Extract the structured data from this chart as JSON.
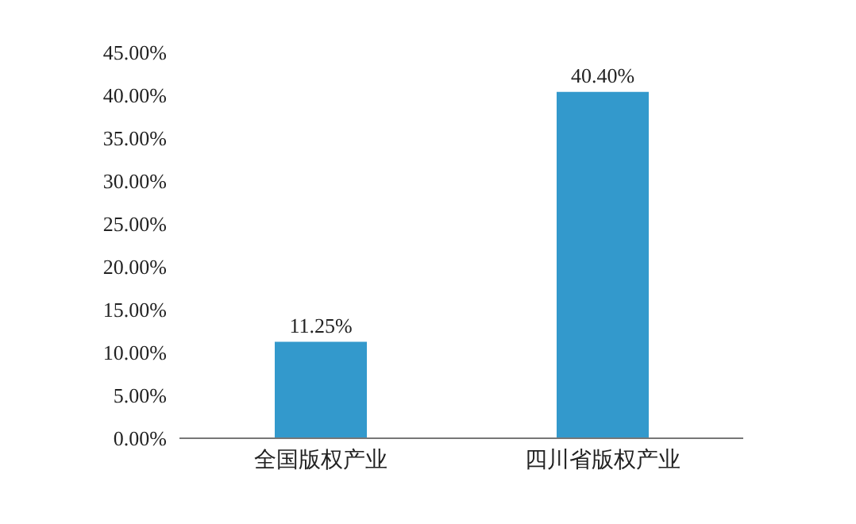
{
  "chart_data": {
    "type": "bar",
    "categories": [
      "全国版权产业",
      "四川省版权产业"
    ],
    "values": [
      11.25,
      40.4
    ],
    "color": "#3399cc",
    "value_labels": [
      "11.25%",
      "40.40%"
    ],
    "ylim": [
      0,
      45
    ],
    "yticks": [
      {
        "value": 0,
        "label": "0.00%"
      },
      {
        "value": 5,
        "label": "5.00%"
      },
      {
        "value": 10,
        "label": "10.00%"
      },
      {
        "value": 15,
        "label": "15.00%"
      },
      {
        "value": 20,
        "label": "20.00%"
      },
      {
        "value": 25,
        "label": "25.00%"
      },
      {
        "value": 30,
        "label": "30.00%"
      },
      {
        "value": 35,
        "label": "35.00%"
      },
      {
        "value": 40,
        "label": "40.00%"
      },
      {
        "value": 45,
        "label": "45.00%"
      }
    ],
    "grid": false,
    "legend": false
  }
}
